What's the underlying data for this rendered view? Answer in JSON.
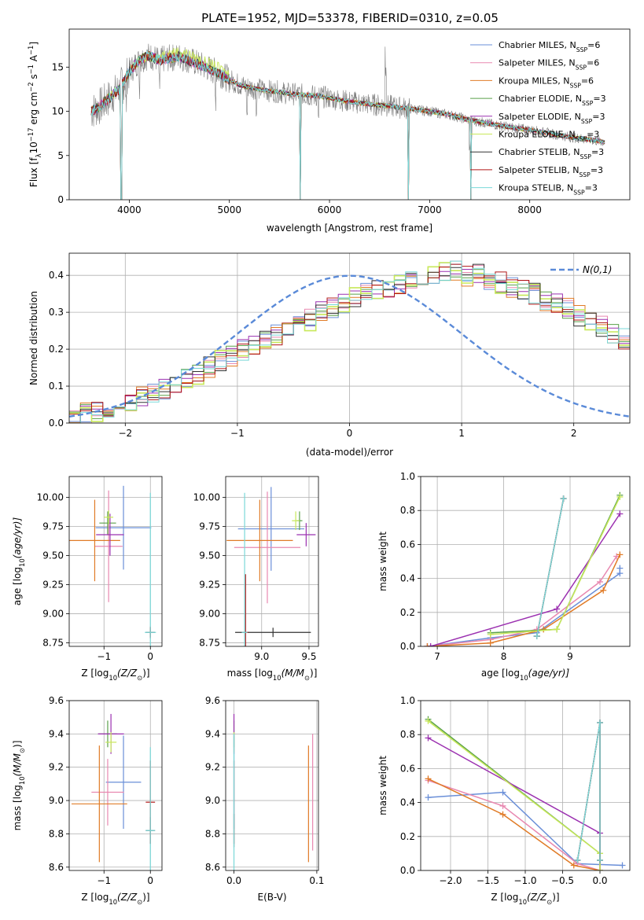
{
  "figure": {
    "title": "PLATE=1952, MJD=53378, FIBERID=0310, z=0.05"
  },
  "series_colors": [
    {
      "name": "Chabrier MILES",
      "color": "#6a8fd8"
    },
    {
      "name": "Salpeter MILES",
      "color": "#e888b0"
    },
    {
      "name": "Kroupa MILES",
      "color": "#e07b27"
    },
    {
      "name": "Chabrier ELODIE",
      "color": "#5aa04a"
    },
    {
      "name": "Salpeter ELODIE",
      "color": "#9b30b0"
    },
    {
      "name": "Kroupa ELODIE",
      "color": "#c8e85a"
    },
    {
      "name": "Chabrier STELIB",
      "color": "#333333"
    },
    {
      "name": "Salpeter STELIB",
      "color": "#b01818"
    },
    {
      "name": "Kroupa STELIB",
      "color": "#7ad8d8"
    }
  ],
  "chart_data": [
    {
      "id": "spectrum",
      "type": "line",
      "title": "PLATE=1952, MJD=53378, FIBERID=0310, z=0.05",
      "xlabel": "wavelength [Angstrom, rest frame]",
      "ylabel_main": "Flux [f",
      "ylabel_sub": "λ",
      "ylabel_rest": "10",
      "ylabel_exp": "−17",
      "ylabel_tail": " erg cm",
      "ylabel_exp2": "−2",
      "ylabel_tail2": " s",
      "ylabel_exp3": "−1",
      "ylabel_tail3": " A",
      "ylabel_exp4": "−1",
      "ylabel_end": "]",
      "xlim": [
        3400,
        9000
      ],
      "ylim": [
        0,
        19.3
      ],
      "xticks": [
        4000,
        5000,
        6000,
        7000,
        8000
      ],
      "yticks": [
        0,
        5,
        10,
        15
      ],
      "legend_position": "top-right",
      "legend": [
        {
          "label": "Chabrier MILES",
          "nssp": "6"
        },
        {
          "label": "Salpeter MILES",
          "nssp": "6"
        },
        {
          "label": "Kroupa MILES",
          "nssp": "6"
        },
        {
          "label": "Chabrier ELODIE",
          "nssp": "3"
        },
        {
          "label": "Salpeter ELODIE",
          "nssp": "3"
        },
        {
          "label": "Kroupa ELODIE",
          "nssp": "3"
        },
        {
          "label": "Chabrier STELIB",
          "nssp": "3"
        },
        {
          "label": "Salpeter STELIB",
          "nssp": "3"
        },
        {
          "label": "Kroupa STELIB",
          "nssp": "3"
        }
      ],
      "legend_prefix": ", N",
      "legend_sub": "SSP",
      "legend_eq": "=",
      "data_color": "#808080",
      "continuum": [
        [
          3620,
          10.0
        ],
        [
          3700,
          10.5
        ],
        [
          3800,
          11.5
        ],
        [
          3900,
          12.5
        ],
        [
          4000,
          14.5
        ],
        [
          4100,
          15.8
        ],
        [
          4200,
          16.3
        ],
        [
          4300,
          15.8
        ],
        [
          4400,
          16.0
        ],
        [
          4500,
          16.2
        ],
        [
          4600,
          15.8
        ],
        [
          4700,
          15.3
        ],
        [
          4800,
          14.8
        ],
        [
          4900,
          14.3
        ],
        [
          5000,
          13.6
        ],
        [
          5100,
          13.0
        ],
        [
          5200,
          12.7
        ],
        [
          5300,
          12.5
        ],
        [
          5400,
          12.3
        ],
        [
          5500,
          12.2
        ],
        [
          5600,
          12.0
        ],
        [
          5700,
          11.9
        ],
        [
          5800,
          11.8
        ],
        [
          5900,
          11.7
        ],
        [
          6000,
          11.5
        ],
        [
          6200,
          11.1
        ],
        [
          6400,
          10.8
        ],
        [
          6600,
          10.6
        ],
        [
          6800,
          10.3
        ],
        [
          7000,
          10.0
        ],
        [
          7200,
          9.6
        ],
        [
          7400,
          9.0
        ],
        [
          7600,
          8.6
        ],
        [
          7800,
          8.2
        ],
        [
          8000,
          7.9
        ],
        [
          8200,
          7.5
        ],
        [
          8400,
          7.1
        ],
        [
          8600,
          6.8
        ],
        [
          8750,
          6.5
        ]
      ],
      "absorption_dips": [
        3934,
        3969,
        4102,
        4300,
        4861,
        5175,
        5270,
        5890,
        6563,
        7400
      ],
      "model_drops": [
        3920,
        5710,
        6790,
        7410
      ]
    },
    {
      "id": "residual-histogram",
      "type": "line",
      "xlabel": "(data-model)/error",
      "ylabel": "Normed distribution",
      "xlim": [
        -2.5,
        2.5
      ],
      "ylim": [
        0,
        0.46
      ],
      "xticks": [
        -2,
        -1,
        0,
        1,
        2
      ],
      "yticks": [
        0.0,
        0.1,
        0.2,
        0.3,
        0.4
      ],
      "legend_label": "N(0,1)",
      "legend_position": "top-right",
      "bin_width": 0.1,
      "bin_start": -2.5,
      "base_counts": [
        0.02,
        0.025,
        0.03,
        0.04,
        0.045,
        0.055,
        0.07,
        0.08,
        0.09,
        0.11,
        0.12,
        0.13,
        0.15,
        0.17,
        0.18,
        0.2,
        0.21,
        0.23,
        0.24,
        0.26,
        0.27,
        0.28,
        0.3,
        0.31,
        0.32,
        0.34,
        0.35,
        0.36,
        0.37,
        0.38,
        0.39,
        0.4,
        0.4,
        0.41,
        0.41,
        0.4,
        0.4,
        0.39,
        0.38,
        0.37,
        0.36,
        0.35,
        0.33,
        0.32,
        0.31,
        0.29,
        0.27,
        0.26,
        0.24,
        0.23,
        0.21,
        0.19,
        0.18,
        0.16,
        0.15,
        0.13,
        0.12,
        0.11,
        0.095,
        0.085,
        0.075,
        0.065,
        0.055,
        0.05,
        0.04,
        0.035,
        0.03,
        0.025,
        0.02,
        0.018
      ]
    },
    {
      "id": "age-vs-z",
      "type": "scatter",
      "xlabel": "Z [log",
      "xlabel_sub": "10",
      "xlabel_rest": "(Z/Z",
      "xlabel_sub2": "⊙",
      "xlabel_end": ")]",
      "ylabel": "age  [log",
      "ylabel_sub": "10",
      "ylabel_rest": "(age/yr)]",
      "xlim": [
        -1.75,
        0.25
      ],
      "ylim": [
        8.72,
        10.18
      ],
      "xticks": [
        -1,
        0
      ],
      "yticks": [
        8.75,
        9.0,
        9.25,
        9.5,
        9.75,
        10.0
      ],
      "points": [
        {
          "series": 0,
          "x": -0.58,
          "y": 9.74,
          "xerr": 0.6,
          "yerr": 0.36
        },
        {
          "series": 1,
          "x": -0.9,
          "y": 9.58,
          "xerr": 0.3,
          "yerr": 0.48
        },
        {
          "series": 2,
          "x": -1.2,
          "y": 9.63,
          "xerr": 0.55,
          "yerr": 0.35
        },
        {
          "series": 3,
          "x": -0.92,
          "y": 9.78,
          "xerr": 0.18,
          "yerr": 0.1
        },
        {
          "series": 4,
          "x": -0.87,
          "y": 9.68,
          "xerr": 0.3,
          "yerr": 0.18
        },
        {
          "series": 5,
          "x": -0.9,
          "y": 9.83,
          "xerr": 0.1,
          "yerr": 0.06
        },
        {
          "series": 6,
          "x": 0.0,
          "y": 8.84,
          "xerr": 0.1,
          "yerr": 0.04
        },
        {
          "series": 7,
          "x": 0.0,
          "y": 8.84,
          "xerr": 0.02,
          "yerr": 0.05
        },
        {
          "series": 8,
          "x": 0.0,
          "y": 8.84,
          "xerr": 0.12,
          "yerr": 1.2
        }
      ]
    },
    {
      "id": "age-vs-mass",
      "type": "scatter",
      "xlabel": "mass [log",
      "xlabel_sub": "10",
      "xlabel_rest": "(M/M",
      "xlabel_sub2": "⊙",
      "xlabel_end": ")]",
      "xlim": [
        8.62,
        9.6
      ],
      "ylim": [
        8.72,
        10.18
      ],
      "xticks": [
        9.0,
        9.5
      ],
      "yticks": [
        8.75,
        9.0,
        9.25,
        9.5,
        9.75,
        10.0
      ],
      "points": [
        {
          "series": 0,
          "x": 9.1,
          "y": 9.73,
          "xerr": 0.35,
          "yerr": 0.36
        },
        {
          "series": 1,
          "x": 9.06,
          "y": 9.57,
          "xerr": 0.35,
          "yerr": 0.48
        },
        {
          "series": 2,
          "x": 8.98,
          "y": 9.63,
          "xerr": 0.35,
          "yerr": 0.35
        },
        {
          "series": 3,
          "x": 9.4,
          "y": 9.8,
          "xerr": 0.03,
          "yerr": 0.08
        },
        {
          "series": 4,
          "x": 9.47,
          "y": 9.68,
          "xerr": 0.1,
          "yerr": 0.1
        },
        {
          "series": 5,
          "x": 9.36,
          "y": 9.8,
          "xerr": 0.04,
          "yerr": 0.08
        },
        {
          "series": 6,
          "x": 9.12,
          "y": 8.84,
          "xerr": 0.4,
          "yerr": 0.04
        },
        {
          "series": 7,
          "x": 8.83,
          "y": 8.84,
          "xerr": 0.03,
          "yerr": 0.5
        },
        {
          "series": 8,
          "x": 8.82,
          "y": 8.84,
          "xerr": 0.03,
          "yerr": 1.2
        }
      ]
    },
    {
      "id": "weight-vs-age",
      "type": "line",
      "xlabel": "age  [log",
      "xlabel_sub": "10",
      "xlabel_rest": "(age/yr)]",
      "ylabel": "mass weight",
      "xlim": [
        6.75,
        9.9
      ],
      "ylim": [
        0,
        1.0
      ],
      "xticks": [
        7,
        8,
        9
      ],
      "yticks": [
        0.0,
        0.2,
        0.4,
        0.6,
        0.8,
        1.0
      ],
      "series": [
        {
          "series": 0,
          "x": [
            6.85,
            7.8,
            8.5,
            9.75,
            9.75
          ],
          "y": [
            0.0,
            0.05,
            0.08,
            0.43,
            0.46
          ]
        },
        {
          "series": 1,
          "x": [
            6.85,
            7.8,
            8.5,
            9.45,
            9.7
          ],
          "y": [
            0.0,
            0.04,
            0.1,
            0.38,
            0.53
          ]
        },
        {
          "series": 2,
          "x": [
            6.85,
            7.8,
            8.6,
            9.5,
            9.75
          ],
          "y": [
            0.0,
            0.02,
            0.1,
            0.33,
            0.54
          ]
        },
        {
          "series": 3,
          "x": [
            7.8,
            8.8,
            9.75
          ],
          "y": [
            0.08,
            0.1,
            0.89
          ]
        },
        {
          "series": 4,
          "x": [
            6.9,
            8.8,
            9.75
          ],
          "y": [
            0.0,
            0.22,
            0.78
          ]
        },
        {
          "series": 5,
          "x": [
            7.8,
            8.8,
            9.75
          ],
          "y": [
            0.07,
            0.1,
            0.88
          ]
        },
        {
          "series": 6,
          "x": [
            8.5,
            8.9
          ],
          "y": [
            0.06,
            0.87
          ]
        },
        {
          "series": 7,
          "x": [
            8.5,
            8.9
          ],
          "y": [
            0.06,
            0.87
          ]
        },
        {
          "series": 8,
          "x": [
            8.5,
            8.9
          ],
          "y": [
            0.06,
            0.87
          ]
        }
      ]
    },
    {
      "id": "mass-vs-z",
      "type": "scatter",
      "xlabel": "Z [log",
      "xlabel_sub": "10",
      "xlabel_rest": "(Z/Z",
      "xlabel_sub2": "⊙",
      "xlabel_end": ")]",
      "ylabel": "mass [log",
      "ylabel_sub": "10",
      "ylabel_rest": "(M/M",
      "ylabel_sub2": "⊙",
      "ylabel_end": ")]",
      "xlim": [
        -1.75,
        0.25
      ],
      "ylim": [
        8.58,
        9.6
      ],
      "xticks": [
        -1,
        0
      ],
      "yticks": [
        8.6,
        8.8,
        9.0,
        9.2,
        9.4,
        9.6
      ],
      "points": [
        {
          "series": 0,
          "x": -0.58,
          "y": 9.11,
          "xerr": 0.38,
          "yerr": 0.28
        },
        {
          "series": 1,
          "x": -0.92,
          "y": 9.05,
          "xerr": 0.35,
          "yerr": 0.2
        },
        {
          "series": 2,
          "x": -1.1,
          "y": 8.98,
          "xerr": 0.6,
          "yerr": 0.35
        },
        {
          "series": 3,
          "x": -0.92,
          "y": 9.4,
          "xerr": 0.2,
          "yerr": 0.08
        },
        {
          "series": 4,
          "x": -0.85,
          "y": 9.4,
          "xerr": 0.28,
          "yerr": 0.12
        },
        {
          "series": 5,
          "x": -0.85,
          "y": 9.35,
          "xerr": 0.12,
          "yerr": 0.06
        },
        {
          "series": 6,
          "x": 0.0,
          "y": 8.82,
          "xerr": 0.1,
          "yerr": 0.08
        },
        {
          "series": 7,
          "x": 0.0,
          "y": 8.99,
          "xerr": 0.1,
          "yerr": 0.25
        },
        {
          "series": 8,
          "x": 0.0,
          "y": 8.82,
          "xerr": 0.1,
          "yerr": 0.5
        }
      ]
    },
    {
      "id": "mass-vs-ebv",
      "type": "scatter",
      "xlabel": "E(B-V)",
      "xlim": [
        -0.01,
        0.102
      ],
      "ylim": [
        8.58,
        9.6
      ],
      "xticks": [
        0.0,
        0.1
      ],
      "yticks": [
        8.6,
        8.8,
        9.0,
        9.2,
        9.4,
        9.6
      ],
      "points": [
        {
          "series": 0,
          "x": 0.0,
          "y": 9.11,
          "xerr": 0,
          "yerr": 0.28
        },
        {
          "series": 1,
          "x": 0.095,
          "y": 9.05,
          "xerr": 0,
          "yerr": 0.35
        },
        {
          "series": 2,
          "x": 0.09,
          "y": 8.98,
          "xerr": 0,
          "yerr": 0.35
        },
        {
          "series": 3,
          "x": 0.0,
          "y": 9.4,
          "xerr": 0,
          "yerr": 0.08
        },
        {
          "series": 4,
          "x": 0.0,
          "y": 9.4,
          "xerr": 0,
          "yerr": 0.12
        },
        {
          "series": 5,
          "x": 0.0,
          "y": 9.35,
          "xerr": 0,
          "yerr": 0.06
        },
        {
          "series": 6,
          "x": 0.0,
          "y": 8.82,
          "xerr": 0,
          "yerr": 0.1
        },
        {
          "series": 7,
          "x": 0.0,
          "y": 8.99,
          "xerr": 0,
          "yerr": 0.25
        },
        {
          "series": 8,
          "x": 0.0,
          "y": 8.9,
          "xerr": 0,
          "yerr": 0.5
        }
      ]
    },
    {
      "id": "weight-vs-z",
      "type": "line",
      "xlabel": "Z [log",
      "xlabel_sub": "10",
      "xlabel_rest": "(Z/Z",
      "xlabel_sub2": "⊙",
      "xlabel_end": ")]",
      "ylabel": "mass weight",
      "xlim": [
        -2.4,
        0.4
      ],
      "ylim": [
        0,
        1.0
      ],
      "xticks": [
        -2.0,
        -1.5,
        -1.0,
        -0.5,
        0.0
      ],
      "yticks": [
        0.0,
        0.2,
        0.4,
        0.6,
        0.8,
        1.0
      ],
      "series": [
        {
          "series": 0,
          "x": [
            -2.3,
            -1.3,
            -0.3,
            0.3
          ],
          "y": [
            0.43,
            0.46,
            0.04,
            0.03
          ]
        },
        {
          "series": 1,
          "x": [
            -2.3,
            -1.3,
            -0.3,
            0.0
          ],
          "y": [
            0.53,
            0.38,
            0.04,
            0.0
          ]
        },
        {
          "series": 2,
          "x": [
            -2.3,
            -1.3,
            -0.35,
            0.0
          ],
          "y": [
            0.54,
            0.33,
            0.03,
            0.0
          ]
        },
        {
          "series": 3,
          "x": [
            -2.3,
            0.0,
            0.0
          ],
          "y": [
            0.89,
            0.1,
            0.0
          ]
        },
        {
          "series": 4,
          "x": [
            -2.3,
            0.0,
            0.0
          ],
          "y": [
            0.78,
            0.22,
            0.0
          ]
        },
        {
          "series": 5,
          "x": [
            -2.3,
            0.0,
            0.0
          ],
          "y": [
            0.88,
            0.1,
            0.0
          ]
        },
        {
          "series": 6,
          "x": [
            -0.3,
            0.0,
            0.0
          ],
          "y": [
            0.06,
            0.87,
            0.06
          ]
        },
        {
          "series": 7,
          "x": [
            -0.3,
            0.0,
            0.0
          ],
          "y": [
            0.06,
            0.87,
            0.06
          ]
        },
        {
          "series": 8,
          "x": [
            -0.3,
            0.0,
            0.0
          ],
          "y": [
            0.06,
            0.87,
            0.06
          ]
        }
      ]
    }
  ]
}
